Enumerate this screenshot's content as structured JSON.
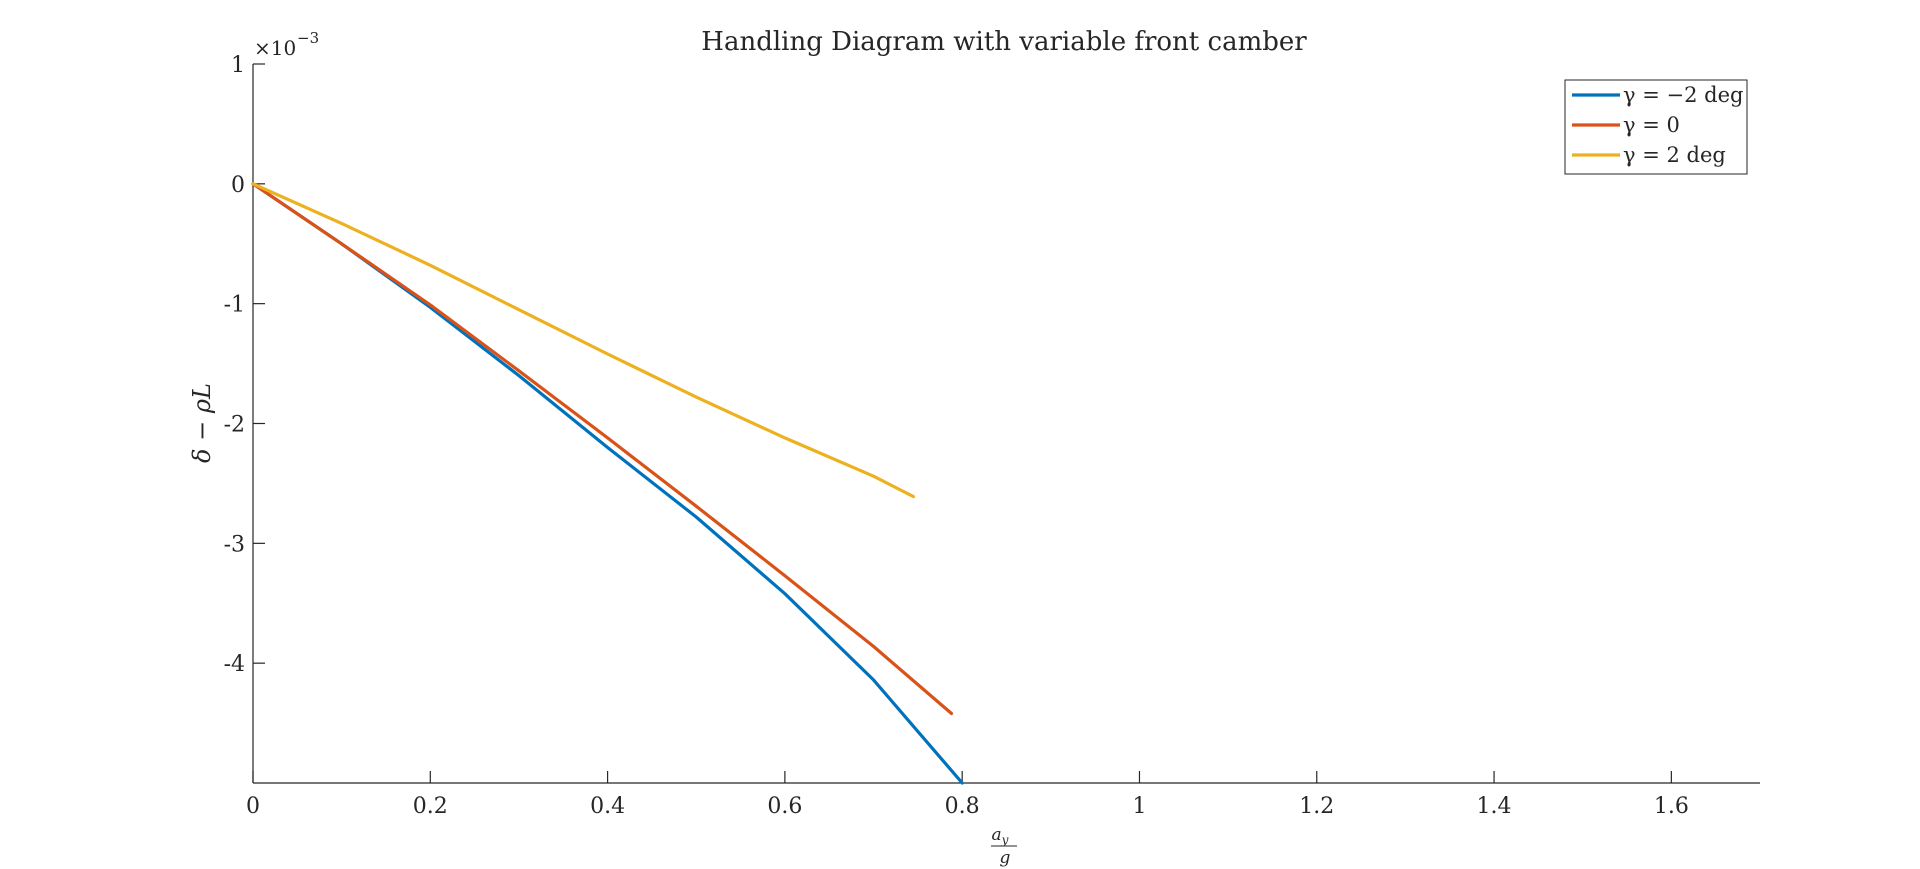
{
  "chart_data": {
    "type": "line",
    "title": "Handling Diagram with variable front camber",
    "xlabel_num": "a",
    "xlabel_num_sub": "y",
    "xlabel_den": "g",
    "ylabel": "δ − ρL",
    "y_exponent_base": "×10",
    "y_exponent_power": "−3",
    "xlim": [
      0,
      1.7
    ],
    "ylim": [
      -5,
      1
    ],
    "x_ticks": [
      "0",
      "0.2",
      "0.4",
      "0.6",
      "0.8",
      "1",
      "1.2",
      "1.4",
      "1.6"
    ],
    "x_tick_values": [
      0,
      0.2,
      0.4,
      0.6,
      0.8,
      1.0,
      1.2,
      1.4,
      1.6
    ],
    "y_ticks": [
      "1",
      "0",
      "-1",
      "-2",
      "-3",
      "-4"
    ],
    "y_tick_values": [
      1,
      0,
      -1,
      -2,
      -3,
      -4
    ],
    "legend_position": "top-right",
    "grid": false,
    "series": [
      {
        "name": "γ = −2 deg",
        "color": "#0072BD",
        "x": [
          0,
          0.1,
          0.2,
          0.3,
          0.4,
          0.5,
          0.6,
          0.7,
          0.8
        ],
        "y": [
          0,
          -0.5,
          -1.03,
          -1.6,
          -2.2,
          -2.78,
          -3.42,
          -4.14,
          -5.0
        ]
      },
      {
        "name": "γ = 0",
        "color": "#D95319",
        "x": [
          0,
          0.1,
          0.2,
          0.3,
          0.4,
          0.5,
          0.6,
          0.7,
          0.788
        ],
        "y": [
          0,
          -0.5,
          -1.01,
          -1.56,
          -2.12,
          -2.69,
          -3.27,
          -3.86,
          -4.42
        ]
      },
      {
        "name": "γ = 2 deg",
        "color": "#EDB120",
        "x": [
          0,
          0.1,
          0.2,
          0.3,
          0.4,
          0.5,
          0.6,
          0.7,
          0.745
        ],
        "y": [
          0,
          -0.33,
          -0.68,
          -1.05,
          -1.42,
          -1.78,
          -2.12,
          -2.44,
          -2.61
        ]
      }
    ]
  }
}
